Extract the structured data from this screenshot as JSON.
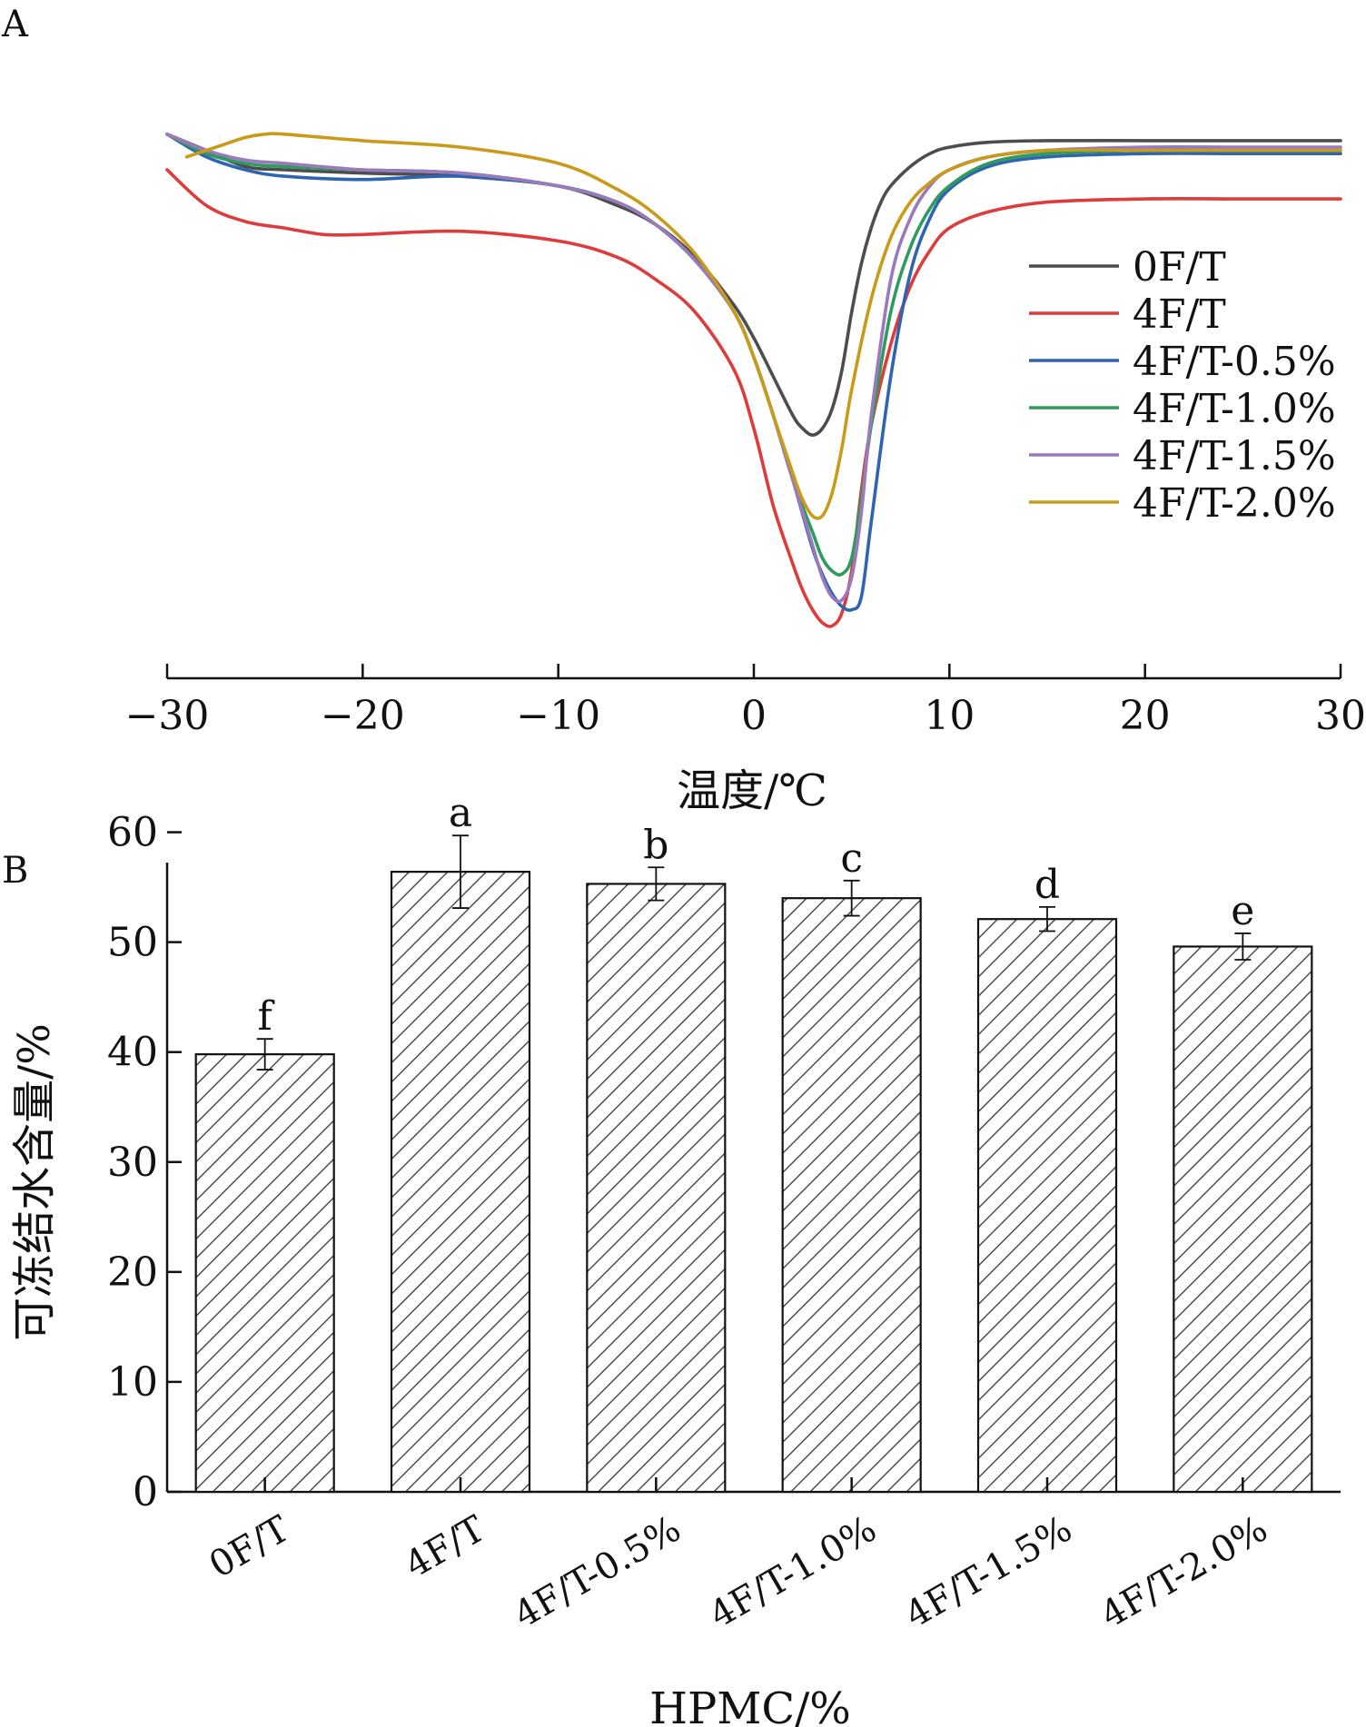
{
  "chart_data": [
    {
      "panel": "A",
      "type": "line",
      "xlabel": "温度/℃",
      "ylabel": "",
      "xlim": [
        -30,
        30
      ],
      "xticks": [
        "−30",
        "−20",
        "−10",
        "0",
        "10",
        "20",
        "30"
      ],
      "y_axis_shown": false,
      "legend_position": "right",
      "series": [
        {
          "name": "0F/T",
          "color": "#4d4d4d",
          "x": [
            -30,
            -28,
            -26,
            -24,
            -20,
            -15,
            -10,
            -7,
            -5,
            -3,
            -1,
            0,
            1,
            2,
            2.5,
            3,
            3.5,
            4,
            4.5,
            5,
            5.5,
            6,
            6.5,
            7,
            8,
            9,
            10,
            12,
            15,
            20,
            25,
            30
          ],
          "y": [
            95,
            90,
            85,
            84,
            83,
            82,
            79,
            73,
            67,
            57,
            42,
            32,
            20,
            8,
            4,
            2,
            4,
            10,
            22,
            40,
            55,
            66,
            74,
            79,
            85,
            89,
            91,
            92.5,
            93,
            93,
            93,
            93
          ]
        },
        {
          "name": "4F/T",
          "color": "#de3b3b",
          "x": [
            -30,
            -28,
            -26,
            -24,
            -22,
            -20,
            -15,
            -10,
            -7,
            -5,
            -3,
            -1,
            0,
            1,
            2,
            2.5,
            3,
            3.5,
            4,
            4.5,
            5,
            5.5,
            6,
            7,
            8,
            9,
            10,
            12,
            15,
            20,
            25,
            30
          ],
          "y": [
            84,
            73,
            68,
            66,
            64,
            64,
            65,
            62,
            57,
            50,
            40,
            22,
            4,
            -20,
            -38,
            -46,
            -52,
            -56,
            -57,
            -53,
            -40,
            -15,
            5,
            30,
            48,
            59,
            66,
            71,
            74,
            75,
            75,
            75
          ]
        },
        {
          "name": "4F/T-0.5%",
          "color": "#2f65b0",
          "x": [
            -30,
            -28,
            -26,
            -24,
            -20,
            -15,
            -10,
            -7,
            -5,
            -3,
            -1,
            0,
            1,
            2,
            3,
            3.5,
            4,
            4.5,
            5,
            5.5,
            6,
            7,
            8,
            9,
            10,
            12,
            15,
            20,
            25,
            30
          ],
          "y": [
            95,
            88,
            84,
            82,
            81,
            82,
            79,
            74,
            67,
            56,
            40,
            26,
            8,
            -12,
            -33,
            -41,
            -47,
            -51,
            -52,
            -48,
            -25,
            20,
            52,
            69,
            78,
            85,
            88,
            89,
            89,
            89
          ]
        },
        {
          "name": "4F/T-1.0%",
          "color": "#2f9b5e",
          "x": [
            -30,
            -28,
            -26,
            -24,
            -20,
            -15,
            -10,
            -7,
            -5,
            -3,
            -1,
            0,
            1,
            2,
            3,
            3.5,
            4,
            4.5,
            5,
            5.5,
            6,
            7,
            8,
            9,
            10,
            12,
            15,
            20,
            25,
            30
          ],
          "y": [
            95,
            89,
            86,
            85,
            84,
            83,
            79,
            74,
            67,
            56,
            40,
            26,
            8,
            -12,
            -28,
            -36,
            -40,
            -41,
            -36,
            -18,
            5,
            40,
            60,
            72,
            79,
            86,
            89,
            90,
            90,
            90
          ]
        },
        {
          "name": "4F/T-1.5%",
          "color": "#9b79bd",
          "x": [
            -30,
            -28,
            -26,
            -24,
            -20,
            -15,
            -10,
            -7,
            -5,
            -3,
            -1,
            0,
            1,
            2,
            3,
            3.5,
            4,
            4.5,
            5,
            5.5,
            6,
            7,
            8,
            9,
            10,
            12,
            15,
            20,
            25,
            30
          ],
          "y": [
            95,
            90,
            87,
            86,
            84,
            83,
            79,
            74,
            67,
            56,
            40,
            26,
            8,
            -12,
            -32,
            -42,
            -48,
            -49,
            -42,
            -22,
            8,
            50,
            69,
            79,
            84,
            88,
            90,
            91,
            91,
            91
          ]
        },
        {
          "name": "4F/T-2.0%",
          "color": "#c89b1b",
          "x": [
            -29,
            -28,
            -27,
            -26,
            -25,
            -24,
            -20,
            -15,
            -10,
            -7,
            -5,
            -3,
            -1,
            0,
            1,
            2,
            2.5,
            3,
            3.5,
            4,
            4.5,
            5,
            6,
            7,
            8,
            9,
            10,
            12,
            15,
            20,
            25,
            30
          ],
          "y": [
            88,
            90,
            92,
            94,
            95,
            95,
            93,
            91,
            86,
            78,
            70,
            58,
            40,
            26,
            8,
            -10,
            -18,
            -23,
            -23,
            -16,
            -2,
            16,
            44,
            63,
            74,
            80,
            84,
            88,
            90,
            90,
            90,
            90
          ]
        }
      ]
    },
    {
      "panel": "B",
      "type": "bar",
      "xlabel": "HPMC/%",
      "ylabel": "可冻结水含量/%",
      "ylim": [
        0,
        65
      ],
      "yticks": [
        "0",
        "10",
        "20",
        "30",
        "40",
        "50",
        "60"
      ],
      "categories": [
        "0F/T",
        "4F/T",
        "4F/T-0.5%",
        "4F/T-1.0%",
        "4F/T-1.5%",
        "4F/T-2.0%"
      ],
      "values": [
        39.8,
        56.4,
        55.3,
        54.0,
        52.1,
        49.6
      ],
      "errors": [
        1.4,
        3.3,
        1.5,
        1.6,
        1.1,
        1.2
      ],
      "significance_letters": [
        "f",
        "a",
        "b",
        "c",
        "d",
        "e"
      ],
      "bar_fill": "diagonal hatch"
    }
  ]
}
